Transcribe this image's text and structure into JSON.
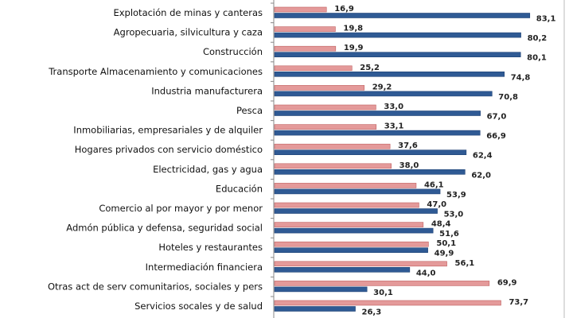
{
  "chart_data": {
    "type": "bar",
    "orientation": "horizontal",
    "categories": [
      "Explotación de minas y canteras",
      "Agropecuaria, silvicultura y caza",
      "Construcción",
      "Transporte Almacenamiento y comunicaciones",
      "Industria manufacturera",
      "Pesca",
      "Inmobiliarias, empresariales y de alquiler",
      "Hogares privados con servicio doméstico",
      "Electricidad, gas y agua",
      "Educación",
      "Comercio al por mayor y por menor",
      "Admón pública y defensa, seguridad social",
      "Hoteles y restaurantes",
      "Intermediación financiera",
      "Otras act de serv comunitarios, sociales y pers",
      "Servicios socales y de salud"
    ],
    "series": [
      {
        "color": "#e49a9a",
        "values": [
          16.9,
          19.8,
          19.9,
          25.2,
          29.2,
          33.0,
          33.1,
          37.6,
          38.0,
          46.1,
          47.0,
          48.4,
          50.1,
          56.1,
          69.9,
          73.7
        ],
        "labels": [
          "16,9",
          "19,8",
          "19,9",
          "25,2",
          "29,2",
          "33,0",
          "33,1",
          "37,6",
          "38,0",
          "46,1",
          "47,0",
          "48,4",
          "50,1",
          "56,1",
          "69,9",
          "73,7"
        ]
      },
      {
        "color": "#2f5a94",
        "values": [
          83.1,
          80.2,
          80.1,
          74.8,
          70.8,
          67.0,
          66.9,
          62.4,
          62.0,
          53.9,
          53.0,
          51.6,
          49.9,
          44.0,
          30.1,
          26.3
        ],
        "labels": [
          "83,1",
          "80,2",
          "80,1",
          "74,8",
          "70,8",
          "67,0",
          "66,9",
          "62,4",
          "62,0",
          "53,9",
          "53,0",
          "51,6",
          "49,9",
          "44,0",
          "30,1",
          "26,3"
        ]
      }
    ],
    "xlim": [
      0,
      100
    ],
    "grid": false,
    "legend": "none"
  }
}
